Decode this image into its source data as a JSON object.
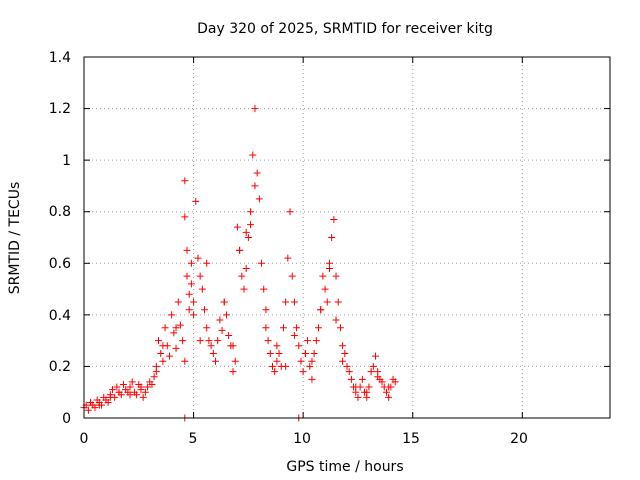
{
  "chart_data": {
    "type": "scatter",
    "title": "Day 320 of 2025, SRMTID for receiver kitg",
    "xlabel": "GPS time / hours",
    "ylabel": "SRMTID / TECUs",
    "xlim": [
      0,
      24
    ],
    "ylim": [
      0,
      1.4
    ],
    "xticks": [
      0,
      5,
      10,
      15,
      20
    ],
    "yticks": [
      0,
      0.2,
      0.4,
      0.6,
      0.8,
      1,
      1.2,
      1.4
    ],
    "xtick_labels": [
      "0",
      "5",
      "10",
      "15",
      "20"
    ],
    "ytick_labels": [
      "0",
      "0.2",
      "0.4",
      "0.6",
      "0.8",
      "1",
      "1.2",
      "1.4"
    ],
    "grid": true,
    "marker": "+",
    "color": "#ff0000",
    "series": [
      {
        "name": "SRMTID",
        "x": [
          0.0,
          0.1,
          0.2,
          0.3,
          0.4,
          0.5,
          0.6,
          0.7,
          0.8,
          0.9,
          1.0,
          1.1,
          1.2,
          1.3,
          1.4,
          1.5,
          1.6,
          1.7,
          1.8,
          1.9,
          2.0,
          2.1,
          2.2,
          2.3,
          2.4,
          2.5,
          2.6,
          2.7,
          2.8,
          2.9,
          3.0,
          3.1,
          3.2,
          3.3,
          3.4,
          3.5,
          3.6,
          3.7,
          3.8,
          3.9,
          4.0,
          4.1,
          4.2,
          4.3,
          4.4,
          4.5,
          4.6,
          4.6,
          4.7,
          4.7,
          4.8,
          4.8,
          4.9,
          4.9,
          5.0,
          5.0,
          5.1,
          5.2,
          5.3,
          5.4,
          5.5,
          5.6,
          5.7,
          5.8,
          5.9,
          6.0,
          6.1,
          6.2,
          6.3,
          6.4,
          6.5,
          6.6,
          6.7,
          6.8,
          6.9,
          7.0,
          7.1,
          7.2,
          7.3,
          7.4,
          7.5,
          7.6,
          7.7,
          7.8,
          7.9,
          8.0,
          8.1,
          8.2,
          8.3,
          8.4,
          8.5,
          8.6,
          8.7,
          8.8,
          8.9,
          9.0,
          9.1,
          9.2,
          9.3,
          9.4,
          9.5,
          9.6,
          9.7,
          9.8,
          9.9,
          10.0,
          10.1,
          10.2,
          10.3,
          10.4,
          10.5,
          10.6,
          10.7,
          10.8,
          10.9,
          11.0,
          11.1,
          11.2,
          11.3,
          11.4,
          11.5,
          11.6,
          11.7,
          11.8,
          11.9,
          12.0,
          12.1,
          12.2,
          12.3,
          12.4,
          12.5,
          12.6,
          12.7,
          12.8,
          12.9,
          13.0,
          13.1,
          13.2,
          13.3,
          13.4,
          13.5,
          13.6,
          13.7,
          13.8,
          13.9,
          14.0,
          14.1,
          14.2,
          0.3,
          0.7,
          1.2,
          1.6,
          2.1,
          2.6,
          3.3,
          3.6,
          4.2,
          4.6,
          5.3,
          5.6,
          6.4,
          6.8,
          7.1,
          7.4,
          7.6,
          7.8,
          8.3,
          8.8,
          9.2,
          9.6,
          10.1,
          10.4,
          10.8,
          11.2,
          11.5,
          11.8,
          12.4,
          12.9,
          13.4,
          13.9,
          4.6,
          9.8
        ],
        "y": [
          0.04,
          0.05,
          0.03,
          0.06,
          0.05,
          0.04,
          0.07,
          0.06,
          0.05,
          0.08,
          0.07,
          0.06,
          0.09,
          0.11,
          0.08,
          0.12,
          0.1,
          0.09,
          0.13,
          0.11,
          0.1,
          0.12,
          0.14,
          0.1,
          0.09,
          0.13,
          0.11,
          0.08,
          0.1,
          0.12,
          0.14,
          0.13,
          0.16,
          0.18,
          0.3,
          0.25,
          0.22,
          0.35,
          0.28,
          0.24,
          0.4,
          0.33,
          0.27,
          0.45,
          0.36,
          0.3,
          0.92,
          0.78,
          0.65,
          0.55,
          0.48,
          0.42,
          0.6,
          0.52,
          0.45,
          0.4,
          0.84,
          0.62,
          0.55,
          0.5,
          0.42,
          0.35,
          0.3,
          0.28,
          0.25,
          0.22,
          0.3,
          0.38,
          0.34,
          0.45,
          0.4,
          0.32,
          0.28,
          0.18,
          0.22,
          0.74,
          0.65,
          0.55,
          0.5,
          0.58,
          0.7,
          0.8,
          1.02,
          1.2,
          0.95,
          0.85,
          0.6,
          0.5,
          0.42,
          0.3,
          0.25,
          0.2,
          0.18,
          0.22,
          0.25,
          0.2,
          0.35,
          0.45,
          0.62,
          0.8,
          0.55,
          0.45,
          0.35,
          0.28,
          0.22,
          0.18,
          0.25,
          0.3,
          0.2,
          0.15,
          0.25,
          0.3,
          0.35,
          0.42,
          0.55,
          0.5,
          0.45,
          0.6,
          0.7,
          0.77,
          0.55,
          0.45,
          0.35,
          0.28,
          0.25,
          0.2,
          0.18,
          0.15,
          0.12,
          0.1,
          0.08,
          0.12,
          0.15,
          0.1,
          0.08,
          0.12,
          0.18,
          0.2,
          0.24,
          0.18,
          0.15,
          0.14,
          0.12,
          0.1,
          0.08,
          0.12,
          0.15,
          0.14,
          0.06,
          0.05,
          0.08,
          0.1,
          0.09,
          0.12,
          0.2,
          0.28,
          0.35,
          0.22,
          0.3,
          0.6,
          0.45,
          0.28,
          0.65,
          0.72,
          0.75,
          0.9,
          0.35,
          0.28,
          0.2,
          0.32,
          0.25,
          0.22,
          0.42,
          0.58,
          0.38,
          0.22,
          0.12,
          0.1,
          0.16,
          0.12,
          0.0,
          0.0
        ]
      }
    ]
  }
}
